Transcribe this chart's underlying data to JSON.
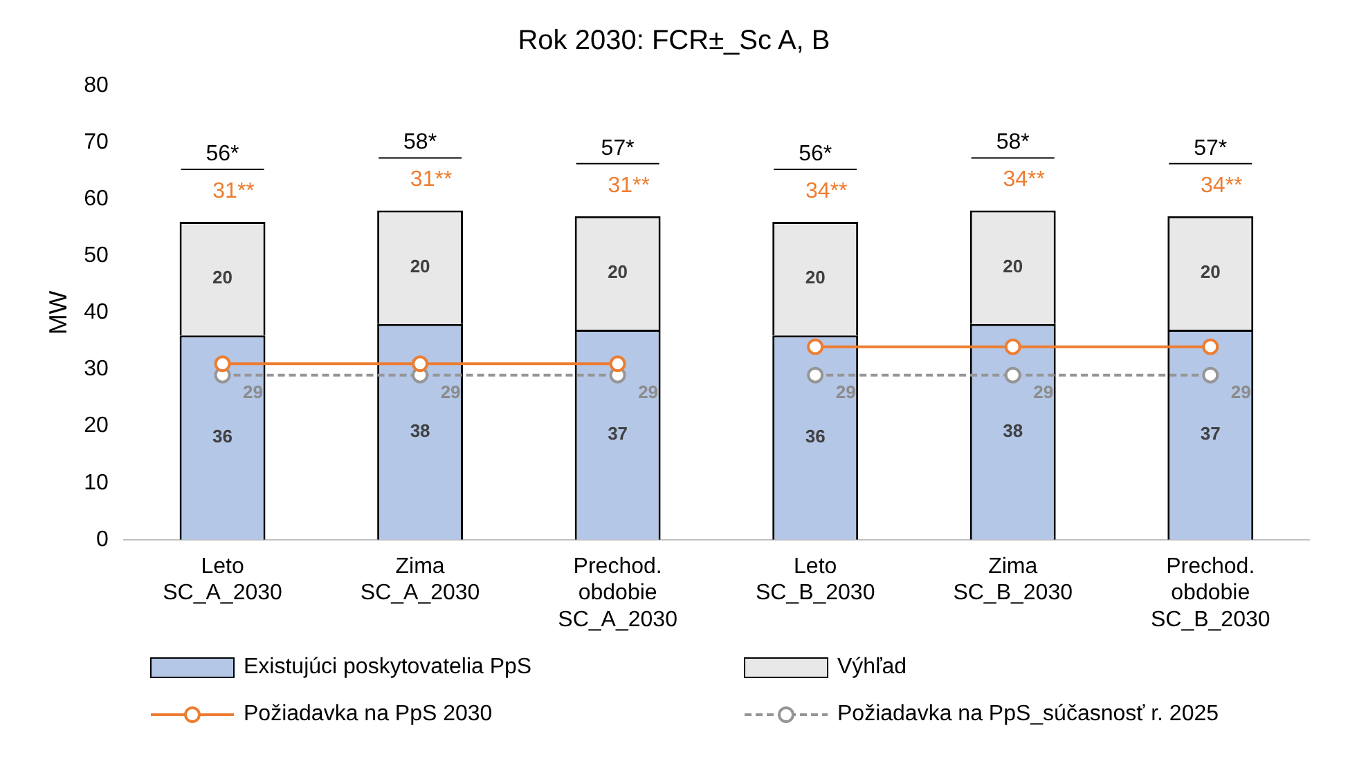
{
  "chart_data": {
    "type": "bar",
    "title": "Rok 2030: FCR±_Sc A, B",
    "ylabel": "MW",
    "categories": [
      "Leto\nSC_A_2030",
      "Zima\nSC_A_2030",
      "Prechod.\nobdobie\nSC_A_2030",
      "Leto\nSC_B_2030",
      "Zima\nSC_B_2030",
      "Prechod.\nobdobie\nSC_B_2030"
    ],
    "stacked": true,
    "ylim": [
      0,
      80
    ],
    "yticks": [
      0,
      10,
      20,
      30,
      40,
      50,
      60,
      70,
      80
    ],
    "grid": false,
    "legend": "bottom",
    "totals": [
      "56*",
      "58*",
      "57*",
      "56*",
      "58*",
      "57*"
    ],
    "annotations": [
      "31**",
      "31**",
      "31**",
      "34**",
      "34**",
      "34**"
    ],
    "series": [
      {
        "name": "Existujúci poskytovatelia PpS",
        "color": "#b4c7e7",
        "values": [
          36,
          38,
          37,
          36,
          38,
          37
        ],
        "value_labels": [
          "36",
          "38",
          "37",
          "36",
          "38",
          "37"
        ]
      },
      {
        "name": "Výhľad",
        "color": "#e8e8e8",
        "values": [
          20,
          20,
          20,
          20,
          20,
          20
        ],
        "value_labels": [
          "20",
          "20",
          "20",
          "20",
          "20",
          "20"
        ]
      },
      {
        "name": "Požiadavka na PpS 2030",
        "type": "line",
        "color": "#ed7d31",
        "marker": "circle",
        "line_style": "solid",
        "values": [
          31,
          31,
          31,
          null,
          null,
          null
        ]
      },
      {
        "type": "line",
        "color": "#ed7d31",
        "marker": "circle",
        "line_style": "solid",
        "values": [
          null,
          null,
          null,
          34,
          34,
          34
        ]
      },
      {
        "name": "Požiadavka na PpS_súčasnosť r. 2025",
        "type": "line",
        "color": "#969696",
        "marker": "circle",
        "line_style": "dashed",
        "values": [
          29,
          29,
          29,
          null,
          null,
          null
        ],
        "value_labels": [
          "29",
          "29",
          "29",
          null,
          null,
          null
        ]
      },
      {
        "type": "line",
        "color": "#969696",
        "marker": "circle",
        "line_style": "dashed",
        "values": [
          null,
          null,
          null,
          29,
          29,
          29
        ],
        "value_labels": [
          null,
          null,
          null,
          "29",
          "29",
          "29"
        ]
      }
    ]
  }
}
